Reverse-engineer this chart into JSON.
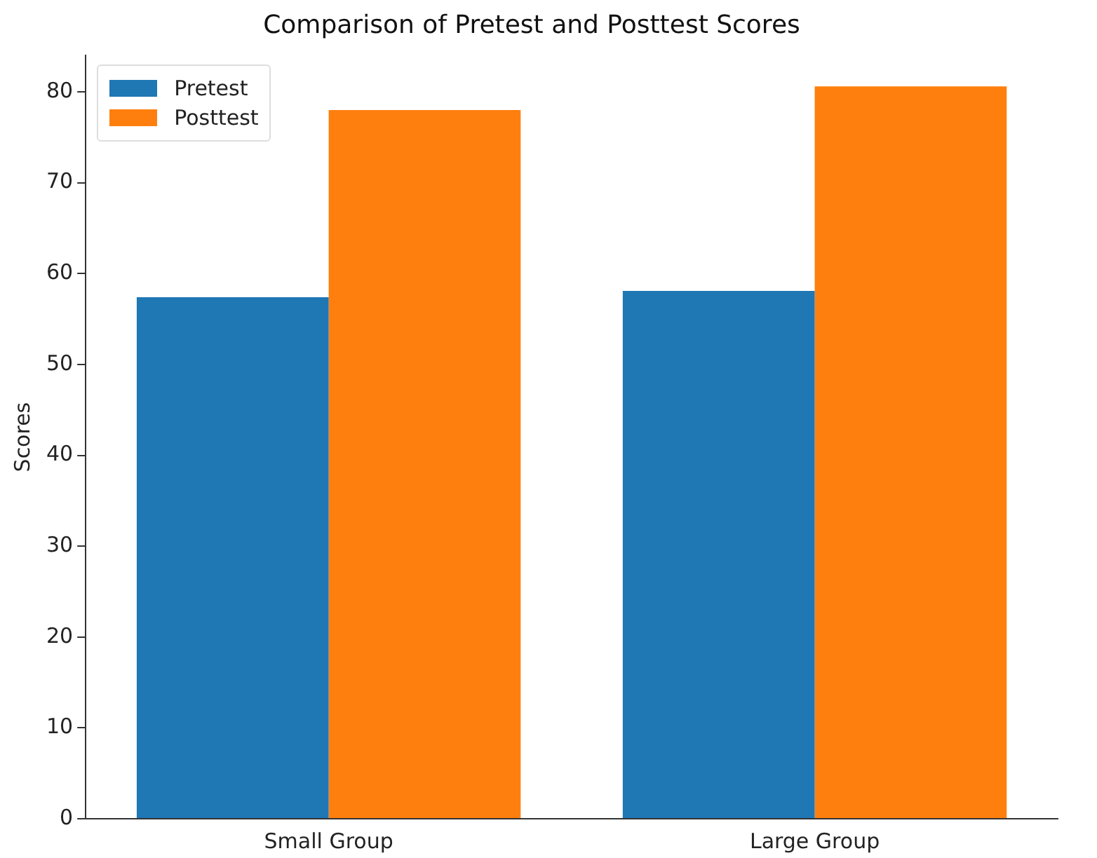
{
  "chart_data": {
    "type": "bar",
    "title": "Comparison of Pretest and Posttest Scores",
    "ylabel": "Scores",
    "categories": [
      "Small Group",
      "Large Group"
    ],
    "series": [
      {
        "name": "Pretest",
        "color": "#1f77b4",
        "values": [
          57.4,
          58.1
        ]
      },
      {
        "name": "Posttest",
        "color": "#ff7f0e",
        "values": [
          78.0,
          80.6
        ]
      }
    ],
    "ylim": [
      0,
      84
    ],
    "yticks": [
      0,
      10,
      20,
      30,
      40,
      50,
      60,
      70,
      80
    ],
    "grid": false,
    "legend": "top left"
  }
}
